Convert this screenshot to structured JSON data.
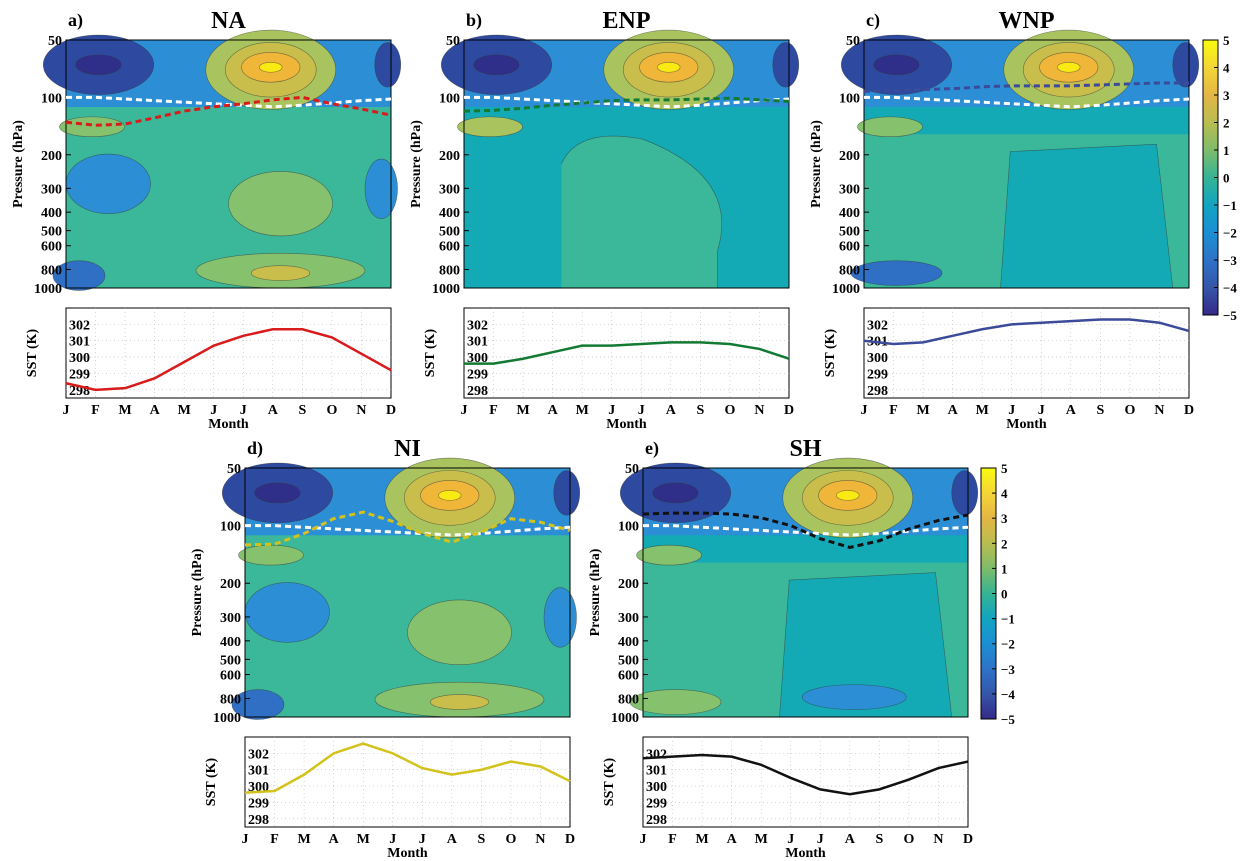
{
  "chart_data": [
    {
      "panel": "a)",
      "title": "NA",
      "type": "contour+line",
      "contour": {
        "ylabel": "Pressure (hPa)",
        "yticks": [
          "50",
          "100",
          "200",
          "300",
          "400",
          "500",
          "600",
          "800",
          "1000"
        ],
        "yscale": "log"
      },
      "sst": {
        "ylabel": "SST (K)",
        "xlabel": "Month",
        "yticks": [
          "302",
          "301",
          "300",
          "299",
          "298"
        ],
        "ylim": [
          297.5,
          303
        ],
        "color": "#d81b1b",
        "x": [
          "J",
          "F",
          "M",
          "A",
          "M",
          "J",
          "J",
          "A",
          "S",
          "O",
          "N",
          "D"
        ],
        "values": [
          298.4,
          298.0,
          298.1,
          298.7,
          299.7,
          300.7,
          301.3,
          301.7,
          301.7,
          301.2,
          300.2,
          299.2
        ]
      },
      "tropopause_line": {
        "color": "#d81b1b",
        "values": [
          135,
          140,
          138,
          128,
          118,
          112,
          108,
          103,
          100,
          108,
          115,
          124
        ]
      }
    },
    {
      "panel": "b)",
      "title": "ENP",
      "type": "contour+line",
      "contour": {
        "ylabel": "Pressure (hPa)",
        "yticks": [
          "50",
          "100",
          "200",
          "300",
          "400",
          "500",
          "600",
          "800",
          "1000"
        ],
        "yscale": "log"
      },
      "sst": {
        "ylabel": "SST (K)",
        "xlabel": "Month",
        "yticks": [
          "302",
          "301",
          "300",
          "299",
          "298"
        ],
        "ylim": [
          297.5,
          303
        ],
        "color": "#127a33",
        "x": [
          "J",
          "F",
          "M",
          "A",
          "M",
          "J",
          "J",
          "A",
          "S",
          "O",
          "N",
          "D"
        ],
        "values": [
          299.6,
          299.6,
          299.9,
          300.3,
          300.7,
          300.7,
          300.8,
          300.9,
          300.9,
          300.8,
          300.5,
          299.9
        ]
      },
      "tropopause_line": {
        "color": "#127a33",
        "values": [
          118,
          117,
          114,
          110,
          107,
          104,
          103,
          103,
          102,
          101,
          103,
          105
        ]
      }
    },
    {
      "panel": "c)",
      "title": "WNP",
      "type": "contour+line",
      "contour": {
        "ylabel": "Pressure (hPa)",
        "yticks": [
          "50",
          "100",
          "200",
          "300",
          "400",
          "500",
          "600",
          "800",
          "1000"
        ],
        "yscale": "log"
      },
      "sst": {
        "ylabel": "SST (K)",
        "xlabel": "Month",
        "yticks": [
          "302",
          "301",
          "300",
          "299",
          "298"
        ],
        "ylim": [
          297.5,
          303
        ],
        "color": "#3c4a9a",
        "x": [
          "J",
          "F",
          "M",
          "A",
          "M",
          "J",
          "J",
          "A",
          "S",
          "O",
          "N",
          "D"
        ],
        "values": [
          301.0,
          300.8,
          300.9,
          301.3,
          301.7,
          302.0,
          302.1,
          302.2,
          302.3,
          302.3,
          302.1,
          301.6
        ]
      },
      "tropopause_line": {
        "color": "#3c4a9a",
        "values": [
          93,
          92,
          91,
          90,
          88,
          87,
          87,
          87,
          86,
          85,
          84,
          84
        ]
      }
    },
    {
      "panel": "d)",
      "title": "NI",
      "type": "contour+line",
      "contour": {
        "ylabel": "Pressure (hPa)",
        "yticks": [
          "50",
          "100",
          "200",
          "300",
          "400",
          "500",
          "600",
          "800",
          "1000"
        ],
        "yscale": "log"
      },
      "sst": {
        "ylabel": "SST (K)",
        "xlabel": "Month",
        "yticks": [
          "302",
          "301",
          "300",
          "299",
          "298"
        ],
        "ylim": [
          297.5,
          303
        ],
        "color": "#d4c21c",
        "x": [
          "J",
          "F",
          "M",
          "A",
          "M",
          "J",
          "J",
          "A",
          "S",
          "O",
          "N",
          "D"
        ],
        "values": [
          299.6,
          299.7,
          300.7,
          302.0,
          302.6,
          302.0,
          301.1,
          300.7,
          301.0,
          301.5,
          301.2,
          300.3
        ]
      },
      "tropopause_line": {
        "color": "#d4c21c",
        "values": [
          126,
          125,
          110,
          92,
          85,
          95,
          110,
          122,
          108,
          92,
          96,
          106
        ]
      }
    },
    {
      "panel": "e)",
      "title": "SH",
      "type": "contour+line",
      "contour": {
        "ylabel": "Pressure (hPa)",
        "yticks": [
          "50",
          "100",
          "200",
          "300",
          "400",
          "500",
          "600",
          "800",
          "1000"
        ],
        "yscale": "log"
      },
      "sst": {
        "ylabel": "SST (K)",
        "xlabel": "Month",
        "yticks": [
          "302",
          "301",
          "300",
          "299",
          "298"
        ],
        "ylim": [
          297.5,
          303
        ],
        "color": "#111111",
        "x": [
          "J",
          "F",
          "M",
          "A",
          "M",
          "J",
          "J",
          "A",
          "S",
          "O",
          "N",
          "D"
        ],
        "values": [
          301.7,
          301.8,
          301.9,
          301.8,
          301.3,
          300.5,
          299.8,
          299.5,
          299.8,
          300.4,
          301.1,
          301.5
        ]
      },
      "tropopause_line": {
        "color": "#111111",
        "values": [
          87,
          86,
          86,
          87,
          91,
          100,
          117,
          130,
          120,
          104,
          94,
          88
        ]
      }
    }
  ],
  "reference_line": {
    "color": "#ffffff",
    "values": [
      100,
      100,
      102,
      104,
      106,
      108,
      110,
      112,
      110,
      107,
      104,
      102
    ]
  },
  "colorbar": {
    "ticks": [
      "5",
      "4",
      "3",
      "2",
      "1",
      "0",
      "−1",
      "−2",
      "−3",
      "−4",
      "−5"
    ],
    "range": [
      -5,
      5
    ]
  }
}
